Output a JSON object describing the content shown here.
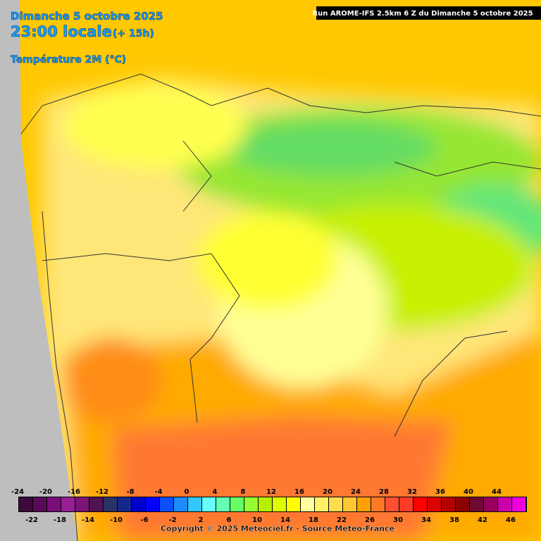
{
  "header": {
    "date": "Dimanche 5 octobre 2025",
    "time": "23:00 locale",
    "offset": "(+ 15h)",
    "variable": "Température 2M (°C)",
    "run": "Run AROME-IFS 2.5km 6 Z du Dimanche 5 octobre 2025"
  },
  "legend": {
    "values": [
      -24,
      -22,
      -20,
      -18,
      -16,
      -14,
      -12,
      -10,
      -8,
      -6,
      -4,
      -2,
      0,
      2,
      4,
      6,
      8,
      10,
      12,
      14,
      16,
      18,
      20,
      22,
      24,
      26,
      28,
      30,
      32,
      34,
      36,
      38,
      40,
      42,
      44,
      46
    ],
    "colors": [
      "#3c0a3c",
      "#5a0a5a",
      "#780f78",
      "#961e96",
      "#7a1478",
      "#501450",
      "#283264",
      "#14288c",
      "#0000c8",
      "#0000ff",
      "#0a50ff",
      "#1e8cff",
      "#32c8ff",
      "#64ffff",
      "#64ffb4",
      "#64ff64",
      "#96ff32",
      "#b4f000",
      "#dcff00",
      "#ffff00",
      "#ffffa0",
      "#fff064",
      "#ffdc50",
      "#ffc832",
      "#ffa000",
      "#ff7828",
      "#ff5032",
      "#ff3c28",
      "#ff0000",
      "#dc0000",
      "#b40000",
      "#8c0000",
      "#6e0a32",
      "#96005a",
      "#c800aa",
      "#f000dc"
    ]
  },
  "footer": {
    "copyright": "Copyright © 2025 Meteociel.fr - Source Meteo-France"
  }
}
